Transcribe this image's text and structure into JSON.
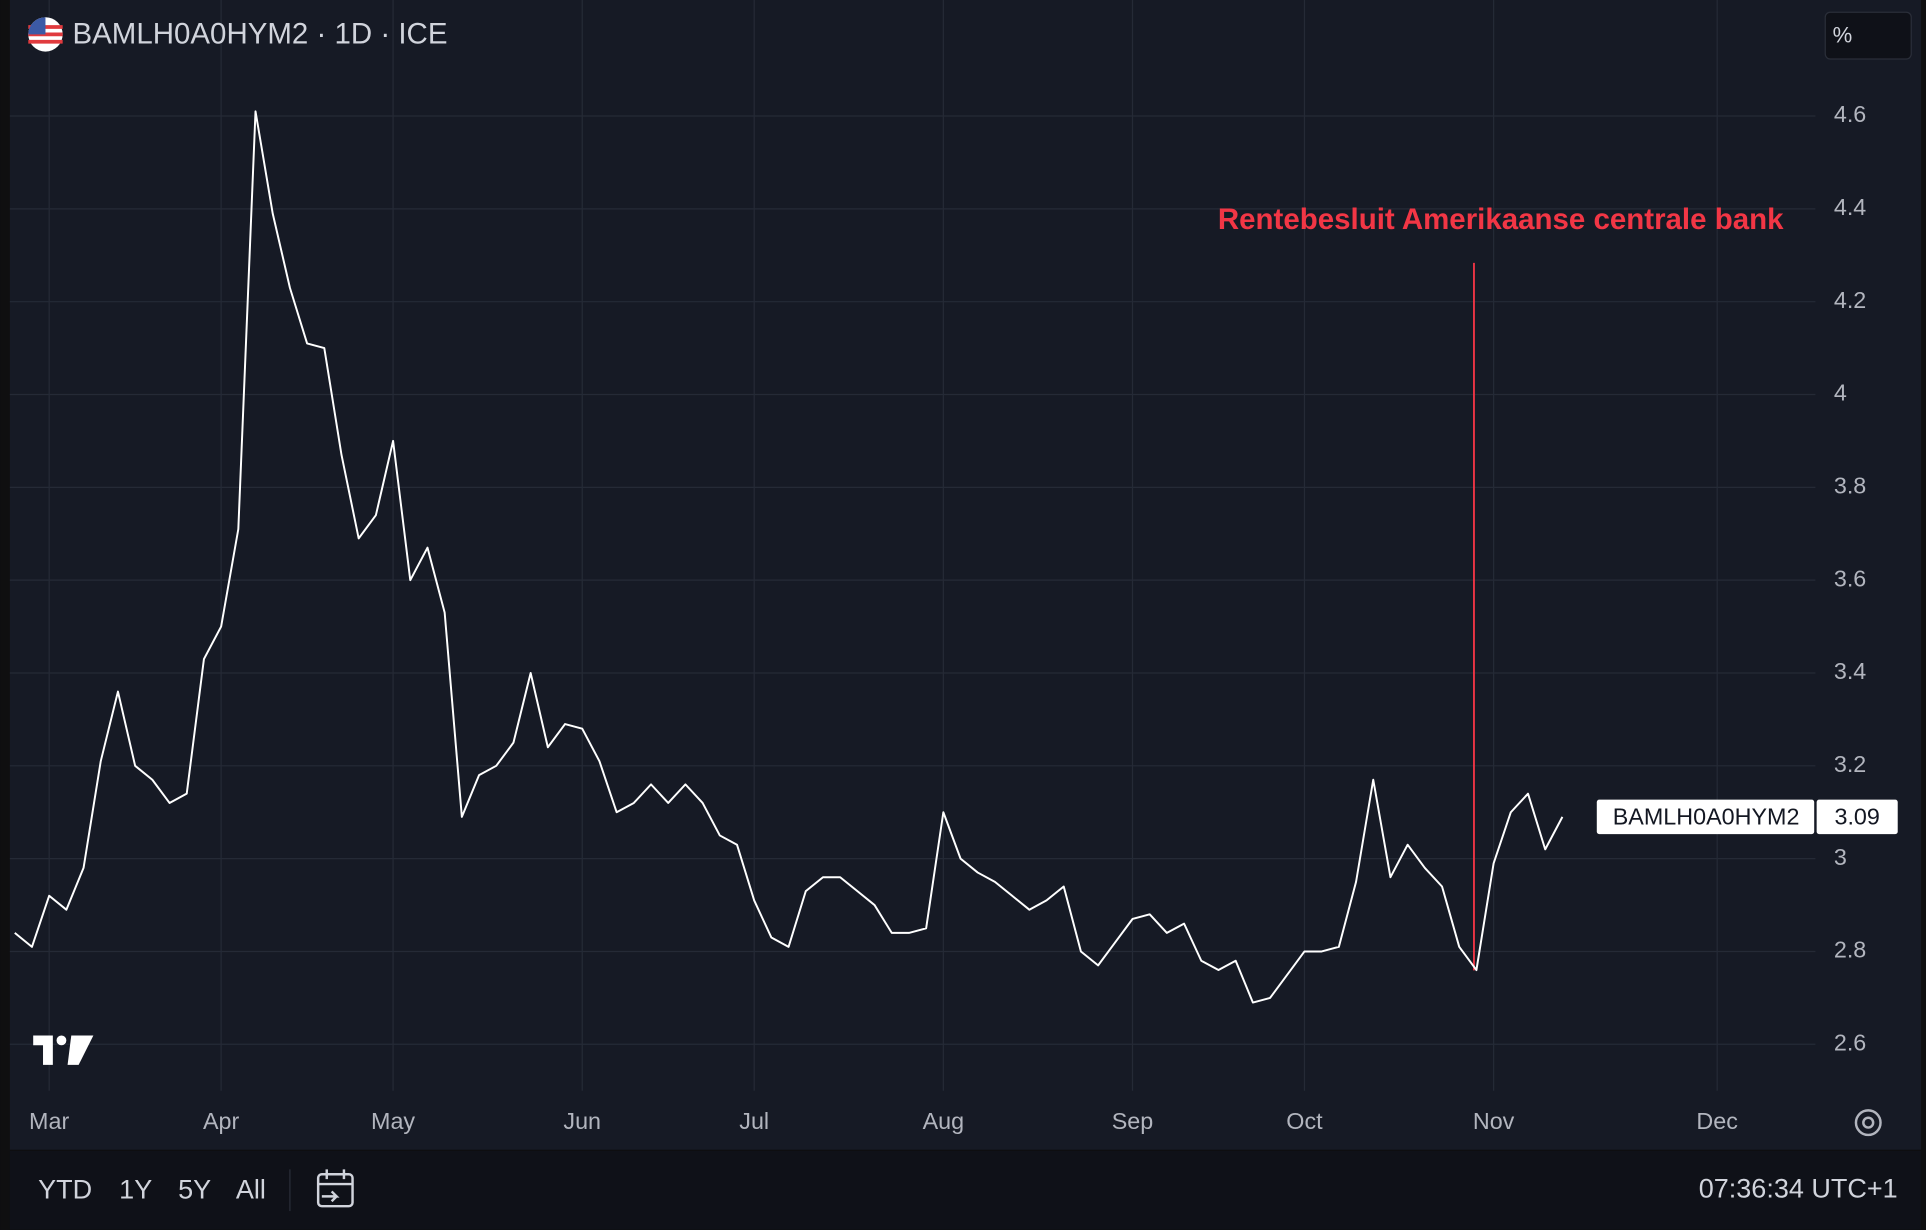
{
  "header": {
    "symbol_line": "BAMLH0A0HYM2 · 1D · ICE",
    "unit": "%"
  },
  "toolbar": {
    "ranges": [
      "YTD",
      "1Y",
      "5Y",
      "All"
    ],
    "clock": "07:36:34 UTC+1"
  },
  "chart_data": {
    "type": "line",
    "annotation": "Rentebesluit Amerikaanse centrale bank",
    "annotation_color": "#f23645",
    "categories": [
      null,
      null,
      "Mar",
      null,
      null,
      null,
      null,
      null,
      null,
      null,
      null,
      null,
      "Apr",
      null,
      null,
      null,
      null,
      null,
      null,
      null,
      null,
      null,
      "May",
      null,
      null,
      null,
      null,
      null,
      null,
      null,
      null,
      null,
      null,
      "Jun",
      null,
      null,
      null,
      null,
      null,
      null,
      null,
      null,
      null,
      "Jul",
      null,
      null,
      null,
      null,
      null,
      null,
      null,
      null,
      null,
      null,
      "Aug",
      null,
      null,
      null,
      null,
      null,
      null,
      null,
      null,
      null,
      null,
      "Sep",
      null,
      null,
      null,
      null,
      null,
      null,
      null,
      null,
      null,
      "Oct",
      null,
      null,
      null,
      null,
      null,
      null,
      null,
      null,
      null,
      null,
      "Nov",
      null,
      null,
      null,
      null,
      null,
      null,
      null,
      null,
      null,
      null,
      null,
      null,
      "Dec",
      null,
      null,
      null,
      null,
      null
    ],
    "series": [
      {
        "name": "BAMLH0A0HYM2",
        "color": "#ffffff",
        "values": [
          2.84,
          2.81,
          2.92,
          2.89,
          2.98,
          3.21,
          3.36,
          3.2,
          3.17,
          3.12,
          3.14,
          3.43,
          3.5,
          3.71,
          4.61,
          4.39,
          4.23,
          4.11,
          4.1,
          3.87,
          3.69,
          3.74,
          3.9,
          3.6,
          3.67,
          3.53,
          3.09,
          3.18,
          3.2,
          3.25,
          3.4,
          3.24,
          3.29,
          3.28,
          3.21,
          3.1,
          3.12,
          3.16,
          3.12,
          3.16,
          3.12,
          3.05,
          3.03,
          2.91,
          2.83,
          2.81,
          2.93,
          2.96,
          2.96,
          2.93,
          2.9,
          2.84,
          2.84,
          2.85,
          3.1,
          3.0,
          2.97,
          2.95,
          2.92,
          2.89,
          2.91,
          2.94,
          2.8,
          2.77,
          2.82,
          2.87,
          2.88,
          2.84,
          2.86,
          2.78,
          2.76,
          2.78,
          2.69,
          2.7,
          2.75,
          2.8,
          2.8,
          2.81,
          2.95,
          3.17,
          2.96,
          3.03,
          2.98,
          2.94,
          2.81,
          2.76,
          2.99,
          3.1,
          3.14,
          3.02,
          3.09,
          null,
          null,
          null,
          null,
          null,
          null,
          null,
          null,
          null,
          null,
          null,
          null,
          null,
          null
        ]
      }
    ],
    "ylim": [
      2.5,
      4.85
    ],
    "yticks": [
      2.6,
      2.8,
      3,
      3.2,
      3.4,
      3.6,
      3.8,
      4,
      4.2,
      4.4,
      4.6
    ],
    "grid": true
  }
}
